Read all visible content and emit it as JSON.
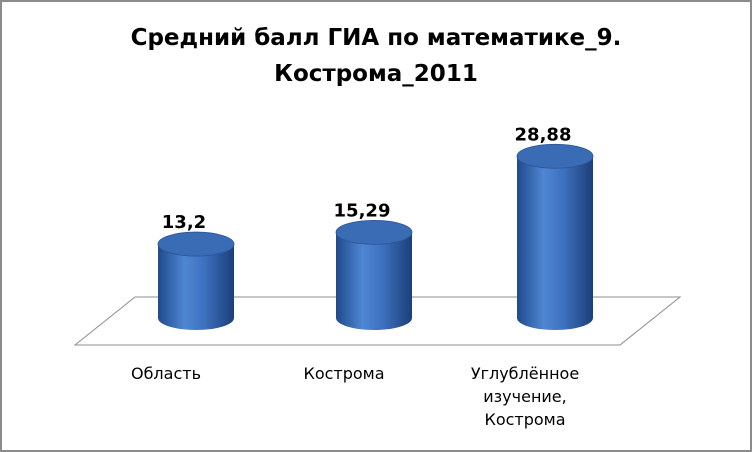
{
  "chart_data": {
    "type": "bar3d",
    "title": "Средний балл ГИА по математике_9. Кострома_2011",
    "categories": [
      "Область",
      "Кострома",
      "Углублённое изучение, Кострома"
    ],
    "values": [
      13.2,
      15.29,
      28.88
    ],
    "value_labels": [
      "13,2",
      "15,29",
      "28,88"
    ],
    "color": "#3a6bb5"
  }
}
